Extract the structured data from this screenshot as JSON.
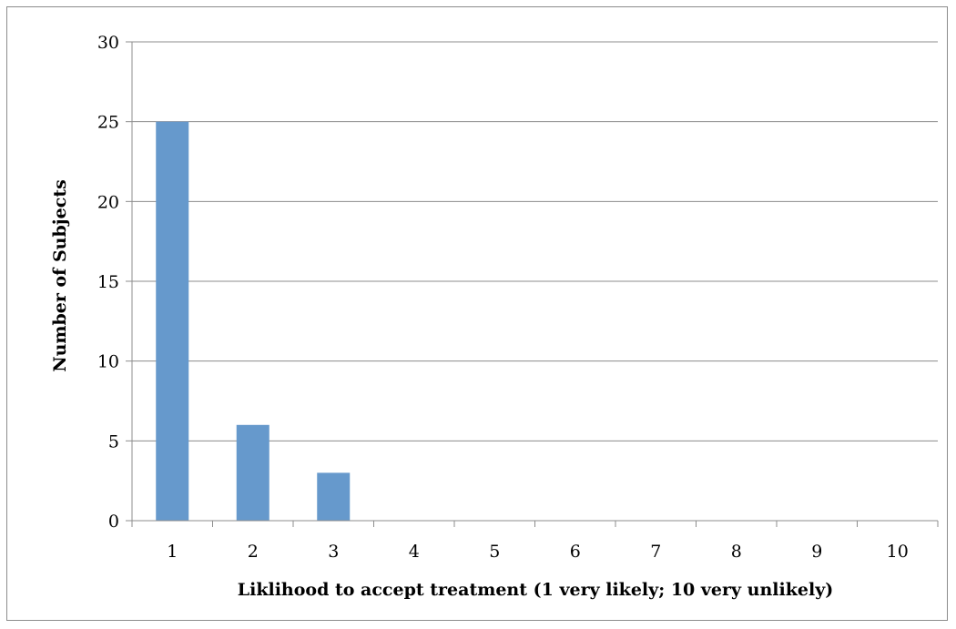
{
  "chart_data": {
    "type": "bar",
    "title": "",
    "xlabel": "Liklihood to accept treatment (1 very likely; 10 very unlikely)",
    "ylabel": "Number of Subjects",
    "categories": [
      "1",
      "2",
      "3",
      "4",
      "5",
      "6",
      "7",
      "8",
      "9",
      "10"
    ],
    "values": [
      25,
      6,
      3,
      0,
      0,
      0,
      0,
      0,
      0,
      0
    ],
    "ylim": [
      0,
      30
    ],
    "yticks": [
      "0",
      "5",
      "10",
      "15",
      "20",
      "25",
      "30"
    ],
    "grid": true,
    "legend": "none",
    "colors": {
      "bar": "#6699cc",
      "grid": "#8c8c8c",
      "axis": "#8c8c8c"
    }
  }
}
